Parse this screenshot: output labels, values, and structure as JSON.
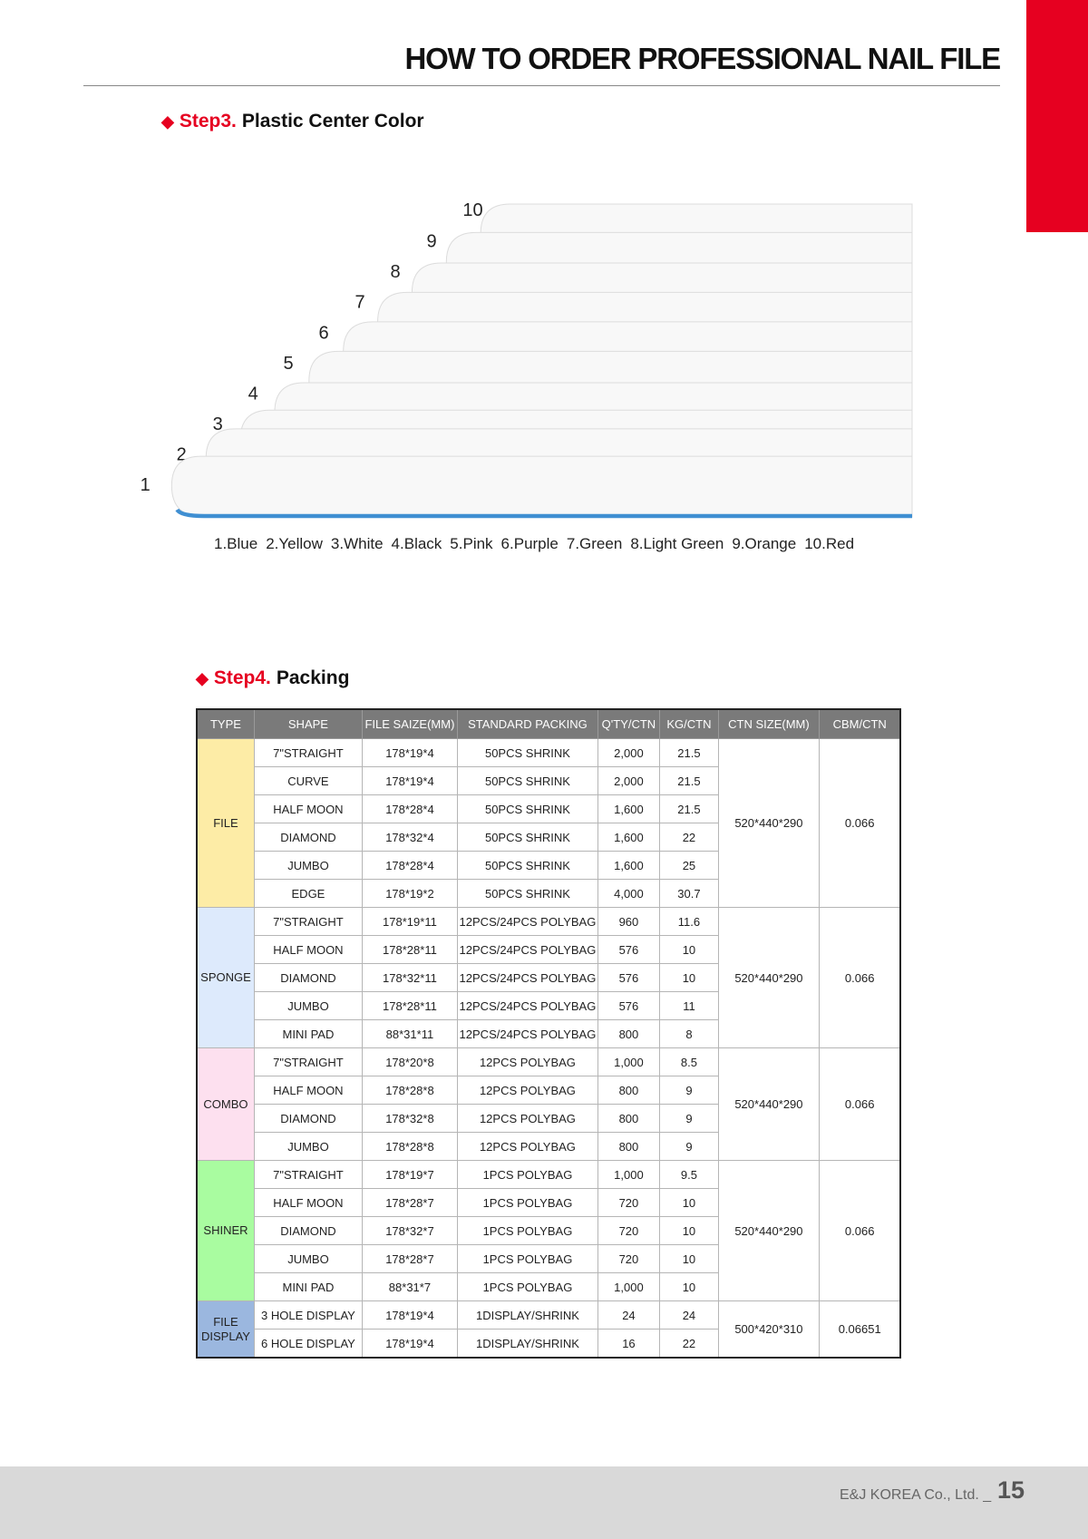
{
  "header": {
    "title": "HOW TO ORDER PROFESSIONAL NAIL FILE",
    "accent": "#e60020"
  },
  "step3": {
    "marker": "◆",
    "label": "Step3.",
    "title": "Plastic Center Color",
    "numbers": [
      "1",
      "2",
      "3",
      "4",
      "5",
      "6",
      "7",
      "8",
      "9",
      "10"
    ],
    "line_colors": [
      "#3f8fd2",
      "#e3c93a",
      "#d4d4e6",
      "#3a3a3a",
      "#b272ac",
      "#8b7cbc",
      "#3aa6c2",
      "#62bf3c",
      "#e98a2c",
      "#e8321e"
    ],
    "legend": [
      "1.Blue",
      "2.Yellow",
      "3.White",
      "4.Black",
      "5.Pink",
      "6.Purple",
      "7.Green",
      "8.Light Green",
      "9.Orange",
      "10.Red"
    ]
  },
  "step4": {
    "marker": "◆",
    "label": "Step4.",
    "title": "Packing",
    "columns": [
      "TYPE",
      "SHAPE",
      "FILE SAIZE(MM)",
      "STANDARD PACKING",
      "Q'TY/CTN",
      "KG/CTN",
      "CTN SIZE(MM)",
      "CBM/CTN"
    ],
    "groups": [
      {
        "type": "FILE",
        "color": "#fdeca6",
        "ctn_size": "520*440*290",
        "cbm": "0.066",
        "rows": [
          [
            "7\"STRAIGHT",
            "178*19*4",
            "50PCS SHRINK",
            "2,000",
            "21.5"
          ],
          [
            "CURVE",
            "178*19*4",
            "50PCS SHRINK",
            "2,000",
            "21.5"
          ],
          [
            "HALF MOON",
            "178*28*4",
            "50PCS SHRINK",
            "1,600",
            "21.5"
          ],
          [
            "DIAMOND",
            "178*32*4",
            "50PCS SHRINK",
            "1,600",
            "22"
          ],
          [
            "JUMBO",
            "178*28*4",
            "50PCS SHRINK",
            "1,600",
            "25"
          ],
          [
            "EDGE",
            "178*19*2",
            "50PCS SHRINK",
            "4,000",
            "30.7"
          ]
        ]
      },
      {
        "type": "SPONGE",
        "color": "#ddeafc",
        "ctn_size": "520*440*290",
        "cbm": "0.066",
        "rows": [
          [
            "7\"STRAIGHT",
            "178*19*11",
            "12PCS/24PCS POLYBAG",
            "960",
            "11.6"
          ],
          [
            "HALF MOON",
            "178*28*11",
            "12PCS/24PCS POLYBAG",
            "576",
            "10"
          ],
          [
            "DIAMOND",
            "178*32*11",
            "12PCS/24PCS POLYBAG",
            "576",
            "10"
          ],
          [
            "JUMBO",
            "178*28*11",
            "12PCS/24PCS POLYBAG",
            "576",
            "11"
          ],
          [
            "MINI PAD",
            "88*31*11",
            "12PCS/24PCS POLYBAG",
            "800",
            "8"
          ]
        ]
      },
      {
        "type": "COMBO",
        "color": "#fde0ef",
        "ctn_size": "520*440*290",
        "cbm": "0.066",
        "rows": [
          [
            "7\"STRAIGHT",
            "178*20*8",
            "12PCS POLYBAG",
            "1,000",
            "8.5"
          ],
          [
            "HALF MOON",
            "178*28*8",
            "12PCS POLYBAG",
            "800",
            "9"
          ],
          [
            "DIAMOND",
            "178*32*8",
            "12PCS POLYBAG",
            "800",
            "9"
          ],
          [
            "JUMBO",
            "178*28*8",
            "12PCS POLYBAG",
            "800",
            "9"
          ]
        ]
      },
      {
        "type": "SHINER",
        "color": "#a9fca0",
        "ctn_size": "520*440*290",
        "cbm": "0.066",
        "rows": [
          [
            "7\"STRAIGHT",
            "178*19*7",
            "1PCS POLYBAG",
            "1,000",
            "9.5"
          ],
          [
            "HALF MOON",
            "178*28*7",
            "1PCS POLYBAG",
            "720",
            "10"
          ],
          [
            "DIAMOND",
            "178*32*7",
            "1PCS POLYBAG",
            "720",
            "10"
          ],
          [
            "JUMBO",
            "178*28*7",
            "1PCS POLYBAG",
            "720",
            "10"
          ],
          [
            "MINI PAD",
            "88*31*7",
            "1PCS POLYBAG",
            "1,000",
            "10"
          ]
        ]
      },
      {
        "type": "FILE DISPLAY",
        "color": "#9bb7df",
        "ctn_size": "500*420*310",
        "cbm": "0.06651",
        "rows": [
          [
            "3 HOLE DISPLAY",
            "178*19*4",
            "1DISPLAY/SHRINK",
            "24",
            "24"
          ],
          [
            "6 HOLE DISPLAY",
            "178*19*4",
            "1DISPLAY/SHRINK",
            "16",
            "22"
          ]
        ]
      }
    ]
  },
  "footer": {
    "company": "E&J KOREA Co., Ltd. _",
    "page": "15"
  }
}
